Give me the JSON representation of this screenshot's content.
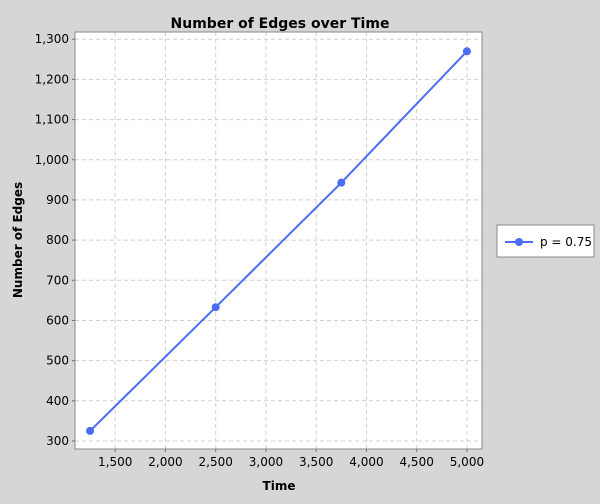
{
  "chart_data": {
    "type": "line",
    "title": "Number of Edges over Time",
    "xlabel": "Time",
    "ylabel": "Number of Edges",
    "xlim": [
      1100,
      5150
    ],
    "ylim": [
      280,
      1318
    ],
    "xticks": [
      1500,
      2000,
      2500,
      3000,
      3500,
      4000,
      4500,
      5000
    ],
    "yticks": [
      300,
      400,
      500,
      600,
      700,
      800,
      900,
      1000,
      1100,
      1200,
      1300
    ],
    "x": [
      1250,
      2500,
      3750,
      5000
    ],
    "series": [
      {
        "name": "p = 0.75",
        "color": "#4a6cf6",
        "marker": "circle",
        "values": [
          325,
          633,
          943,
          1270
        ]
      }
    ],
    "grid": true,
    "legend_position": "right"
  }
}
